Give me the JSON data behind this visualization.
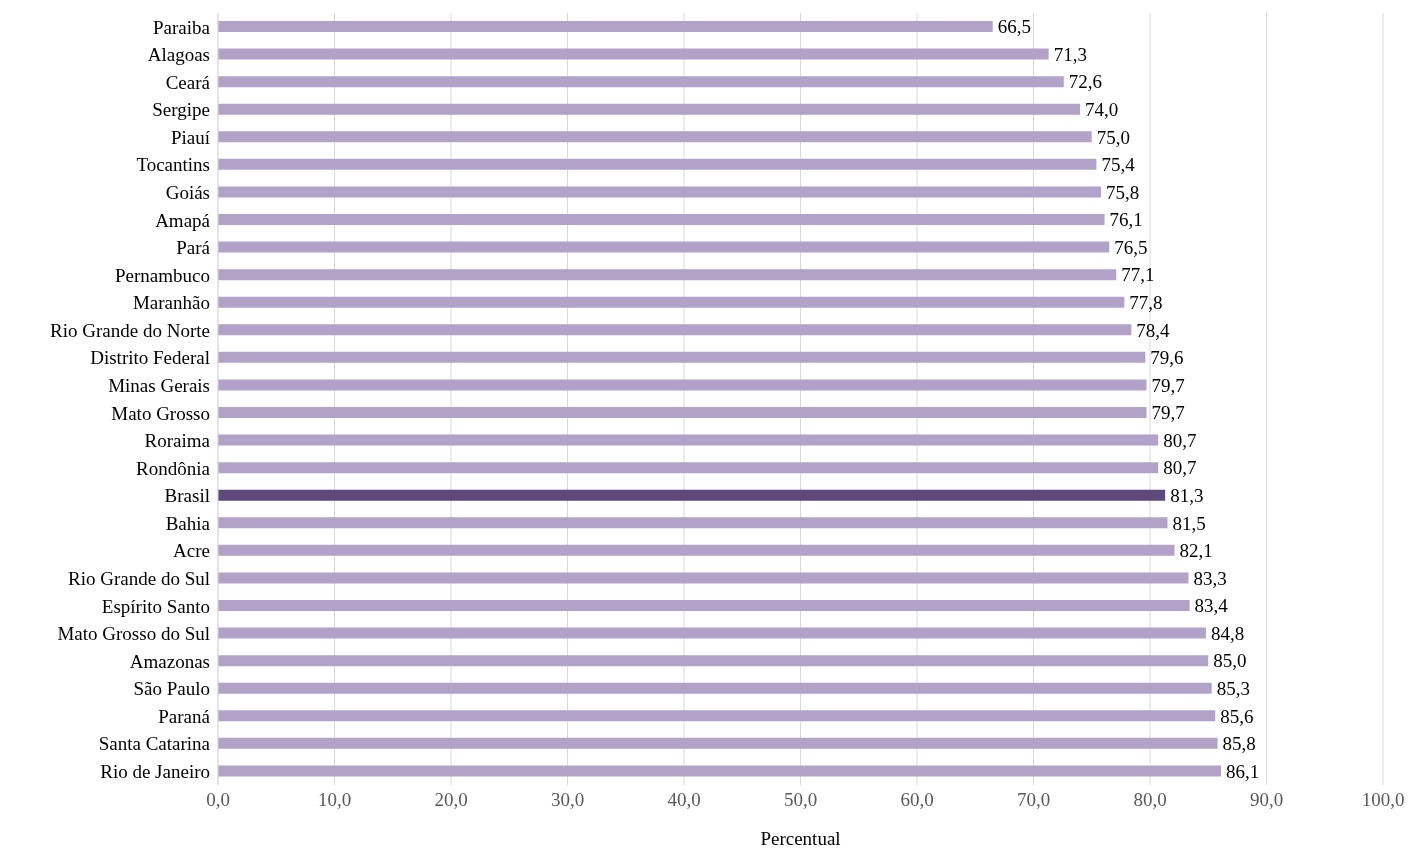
{
  "chart_data": {
    "type": "bar",
    "orientation": "horizontal",
    "xlabel": "Percentual",
    "categories": [
      "Paraiba",
      "Alagoas",
      "Ceará",
      "Sergipe",
      "Piauí",
      "Tocantins",
      "Goiás",
      "Amapá",
      "Pará",
      "Pernambuco",
      "Maranhão",
      "Rio Grande do Norte",
      "Distrito Federal",
      "Minas Gerais",
      "Mato Grosso",
      "Roraima",
      "Rondônia",
      "Brasil",
      "Bahia",
      "Acre",
      "Rio Grande do Sul",
      "Espírito Santo",
      "Mato Grosso do Sul",
      "Amazonas",
      "São Paulo",
      "Paraná",
      "Santa Catarina",
      "Rio de Janeiro"
    ],
    "values": [
      66.5,
      71.3,
      72.6,
      74.0,
      75.0,
      75.4,
      75.8,
      76.1,
      76.5,
      77.1,
      77.8,
      78.4,
      79.6,
      79.7,
      79.7,
      80.7,
      80.7,
      81.3,
      81.5,
      82.1,
      83.3,
      83.4,
      84.8,
      85.0,
      85.3,
      85.6,
      85.8,
      86.1
    ],
    "value_labels": [
      "66,5",
      "71,3",
      "72,6",
      "74,0",
      "75,0",
      "75,4",
      "75,8",
      "76,1",
      "76,5",
      "77,1",
      "77,8",
      "78,4",
      "79,6",
      "79,7",
      "79,7",
      "80,7",
      "80,7",
      "81,3",
      "81,5",
      "82,1",
      "83,3",
      "83,4",
      "84,8",
      "85,0",
      "85,3",
      "85,6",
      "85,8",
      "86,1"
    ],
    "colors": [
      "#b3a2c7",
      "#b3a2c7",
      "#b3a2c7",
      "#b3a2c7",
      "#b3a2c7",
      "#b3a2c7",
      "#b3a2c7",
      "#b3a2c7",
      "#b3a2c7",
      "#b3a2c7",
      "#b3a2c7",
      "#b3a2c7",
      "#b3a2c7",
      "#b3a2c7",
      "#b3a2c7",
      "#b3a2c7",
      "#b3a2c7",
      "#5f497a",
      "#b3a2c7",
      "#b3a2c7",
      "#b3a2c7",
      "#b3a2c7",
      "#b3a2c7",
      "#b3a2c7",
      "#b3a2c7",
      "#b3a2c7",
      "#b3a2c7",
      "#b3a2c7"
    ],
    "xlim": [
      0,
      100
    ],
    "xticks": [
      {
        "value": 0,
        "label": "0,0"
      },
      {
        "value": 10,
        "label": "10,0"
      },
      {
        "value": 20,
        "label": "20,0"
      },
      {
        "value": 30,
        "label": "30,0"
      },
      {
        "value": 40,
        "label": "40,0"
      },
      {
        "value": 50,
        "label": "50,0"
      },
      {
        "value": 60,
        "label": "60,0"
      },
      {
        "value": 70,
        "label": "70,0"
      },
      {
        "value": 80,
        "label": "80,0"
      },
      {
        "value": 90,
        "label": "90,0"
      },
      {
        "value": 100,
        "label": "100,0"
      }
    ],
    "grid": "x"
  }
}
